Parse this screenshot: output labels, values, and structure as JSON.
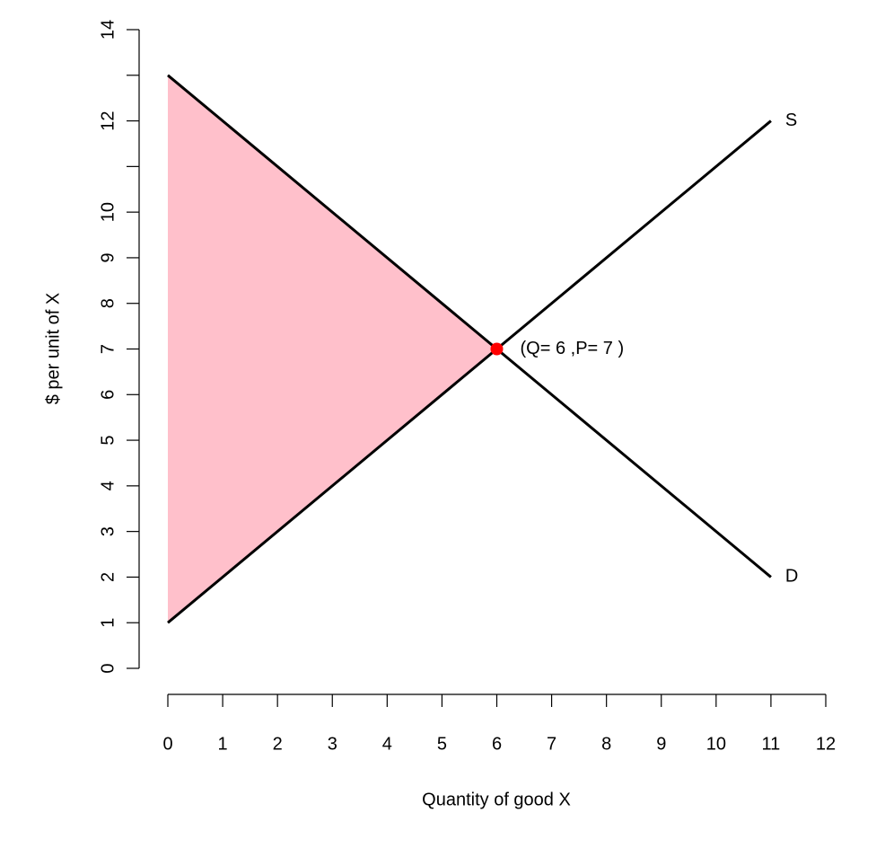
{
  "chart_data": {
    "type": "line",
    "xlabel": "Quantity of good X",
    "ylabel": "$ per unit of X",
    "xlim": [
      0,
      12
    ],
    "ylim": [
      0,
      14
    ],
    "xticks": [
      0,
      1,
      2,
      3,
      4,
      5,
      6,
      7,
      8,
      9,
      10,
      11,
      12
    ],
    "yticks": [
      0,
      1,
      2,
      3,
      4,
      5,
      6,
      7,
      8,
      9,
      10,
      {
        "value": 11,
        "label": null
      },
      12,
      {
        "value": 13,
        "label": null
      },
      14
    ],
    "series": [
      {
        "name": "S",
        "color": "#000000",
        "x": [
          0,
          11
        ],
        "values": [
          1,
          12
        ]
      },
      {
        "name": "D",
        "color": "#000000",
        "x": [
          0,
          11
        ],
        "values": [
          13,
          2
        ]
      }
    ],
    "shade": {
      "color": "#ffc0cb",
      "x": [
        0,
        6,
        0
      ],
      "values": [
        13,
        7,
        1
      ]
    },
    "point": {
      "color": "#ff0000",
      "x": 6,
      "y": 7,
      "label": "(Q= 6 ,P= 7 )"
    }
  }
}
